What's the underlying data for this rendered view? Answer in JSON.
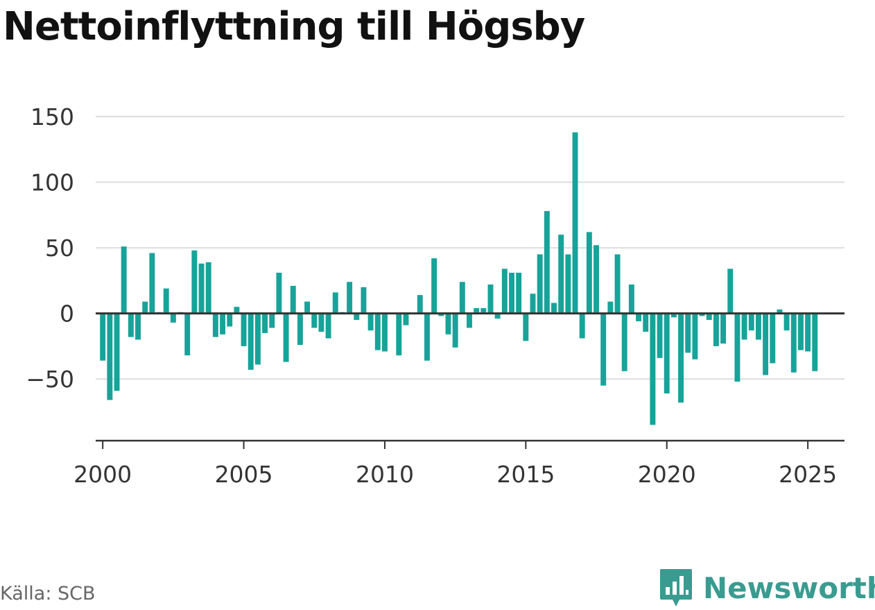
{
  "title": "Nettoinflyttning till Högsby",
  "source": "Källa: SCB",
  "brand": {
    "name": "Newsworthy",
    "icon": "bar-chart-logo-icon",
    "color": "#3a9b90"
  },
  "colors": {
    "bar": "#17a399",
    "grid": "#dddddd",
    "axis": "#333333"
  },
  "chart_data": {
    "type": "bar",
    "title": "Nettoinflyttning till Högsby",
    "xlabel": "",
    "ylabel": "",
    "ylim": [
      -97,
      150
    ],
    "xlim": [
      1999.75,
      2026.3
    ],
    "yticks": [
      150,
      100,
      50,
      0,
      -50
    ],
    "ytick_labels": [
      "150",
      "100",
      "50",
      "0",
      "−50"
    ],
    "xticks": [
      2000,
      2005,
      2010,
      2015,
      2020,
      2025
    ],
    "xtick_labels": [
      "2000",
      "2005",
      "2010",
      "2015",
      "2020",
      "2025"
    ],
    "grid": true,
    "x_start": 2000.0,
    "x_step": 0.25,
    "values": [
      -36,
      -66,
      -59,
      51,
      -18,
      -20,
      9,
      46,
      1,
      19,
      -7,
      1,
      -32,
      48,
      38,
      39,
      -18,
      -16,
      -10,
      5,
      -25,
      -43,
      -39,
      -15,
      -11,
      31,
      -37,
      21,
      -24,
      9,
      -11,
      -14,
      -19,
      16,
      1,
      24,
      -5,
      20,
      -13,
      -28,
      -29,
      0,
      -32,
      -9,
      0,
      14,
      -36,
      42,
      -2,
      -16,
      -26,
      24,
      -11,
      4,
      4,
      22,
      -4,
      34,
      31,
      31,
      -21,
      15,
      45,
      78,
      8,
      60,
      45,
      138,
      -19,
      62,
      52,
      -55,
      9,
      45,
      -44,
      22,
      -6,
      -14,
      -85,
      -34,
      -61,
      -3,
      -68,
      -30,
      -35,
      -2,
      -5,
      -25,
      -23,
      34,
      -52,
      -20,
      -13,
      -20,
      -47,
      -38,
      3,
      -13,
      -45,
      -28,
      -29,
      -44
    ]
  }
}
